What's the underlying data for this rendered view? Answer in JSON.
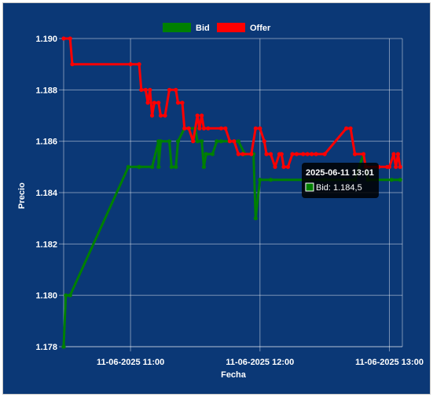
{
  "chart_data": {
    "type": "line",
    "xlabel": "Fecha",
    "ylabel": "Precio",
    "xlim": [
      "2025-06-11 10:29",
      "2025-06-11 13:06"
    ],
    "ylim": [
      1.178,
      1.19
    ],
    "y_ticks": [
      "1.178",
      "1.180",
      "1.182",
      "1.184",
      "1.186",
      "1.188",
      "1.190"
    ],
    "x_ticks": [
      "11-06-2025 11:00",
      "11-06-2025 12:00",
      "11-06-2025 13:00"
    ],
    "grid": true,
    "legend_position": "top-center",
    "series": [
      {
        "name": "Bid",
        "color": "#008000",
        "points": [
          [
            "10:29",
            1.178
          ],
          [
            "10:30",
            1.18
          ],
          [
            "10:32",
            1.18
          ],
          [
            "10:59",
            1.185
          ],
          [
            "11:04",
            1.185
          ],
          [
            "11:10",
            1.185
          ],
          [
            "11:13",
            1.186
          ],
          [
            "11:13",
            1.185
          ],
          [
            "11:14",
            1.186
          ],
          [
            "11:18",
            1.186
          ],
          [
            "11:19",
            1.185
          ],
          [
            "11:21",
            1.185
          ],
          [
            "11:22",
            1.186
          ],
          [
            "11:25",
            1.1865
          ],
          [
            "11:30",
            1.1865
          ],
          [
            "11:31",
            1.186
          ],
          [
            "11:33",
            1.186
          ],
          [
            "11:34",
            1.185
          ],
          [
            "11:35",
            1.1855
          ],
          [
            "11:38",
            1.1855
          ],
          [
            "11:40",
            1.186
          ],
          [
            "11:42",
            1.186
          ],
          [
            "11:50",
            1.186
          ],
          [
            "11:53",
            1.1855
          ],
          [
            "11:57",
            1.1855
          ],
          [
            "11:58",
            1.183
          ],
          [
            "12:00",
            1.1845
          ],
          [
            "12:05",
            1.1845
          ],
          [
            "12:30",
            1.1845
          ],
          [
            "12:44",
            1.1845
          ],
          [
            "12:48",
            1.1855
          ],
          [
            "12:50",
            1.1845
          ],
          [
            "13:01",
            1.1845
          ],
          [
            "13:05",
            1.1845
          ]
        ]
      },
      {
        "name": "Offer",
        "color": "#ff0000",
        "points": [
          [
            "10:29",
            1.19
          ],
          [
            "10:32",
            1.19
          ],
          [
            "10:33",
            1.189
          ],
          [
            "11:00",
            1.189
          ],
          [
            "11:04",
            1.189
          ],
          [
            "11:05",
            1.188
          ],
          [
            "11:07",
            1.188
          ],
          [
            "11:08",
            1.1875
          ],
          [
            "11:09",
            1.188
          ],
          [
            "11:10",
            1.187
          ],
          [
            "11:11",
            1.1875
          ],
          [
            "11:13",
            1.1875
          ],
          [
            "11:14",
            1.187
          ],
          [
            "11:16",
            1.187
          ],
          [
            "11:18",
            1.188
          ],
          [
            "11:21",
            1.188
          ],
          [
            "11:22",
            1.1875
          ],
          [
            "11:24",
            1.1875
          ],
          [
            "11:25",
            1.1865
          ],
          [
            "11:27",
            1.1865
          ],
          [
            "11:29",
            1.186
          ],
          [
            "11:31",
            1.187
          ],
          [
            "11:32",
            1.1865
          ],
          [
            "11:33",
            1.187
          ],
          [
            "11:34",
            1.1865
          ],
          [
            "11:36",
            1.1865
          ],
          [
            "11:42",
            1.1865
          ],
          [
            "11:44",
            1.1865
          ],
          [
            "11:46",
            1.186
          ],
          [
            "11:48",
            1.186
          ],
          [
            "11:50",
            1.1855
          ],
          [
            "11:52",
            1.1855
          ],
          [
            "11:56",
            1.1855
          ],
          [
            "11:58",
            1.1865
          ],
          [
            "12:00",
            1.1865
          ],
          [
            "12:02",
            1.186
          ],
          [
            "12:03",
            1.1855
          ],
          [
            "12:05",
            1.1855
          ],
          [
            "12:07",
            1.185
          ],
          [
            "12:09",
            1.1855
          ],
          [
            "12:10",
            1.1855
          ],
          [
            "12:11",
            1.185
          ],
          [
            "12:13",
            1.185
          ],
          [
            "12:15",
            1.1855
          ],
          [
            "12:17",
            1.1855
          ],
          [
            "12:20",
            1.1855
          ],
          [
            "12:22",
            1.1855
          ],
          [
            "12:24",
            1.1855
          ],
          [
            "12:26",
            1.1855
          ],
          [
            "12:30",
            1.1855
          ],
          [
            "12:40",
            1.1865
          ],
          [
            "12:42",
            1.1865
          ],
          [
            "12:44",
            1.1855
          ],
          [
            "12:48",
            1.1855
          ],
          [
            "12:49",
            1.185
          ],
          [
            "12:55",
            1.185
          ],
          [
            "12:59",
            1.185
          ],
          [
            "13:00",
            1.185
          ],
          [
            "13:02",
            1.1855
          ],
          [
            "13:03",
            1.185
          ],
          [
            "13:04",
            1.1855
          ],
          [
            "13:05",
            1.185
          ]
        ]
      }
    ],
    "tooltip": {
      "title": "2025-06-11 13:01",
      "label": "Bid: 1.184,5"
    }
  }
}
